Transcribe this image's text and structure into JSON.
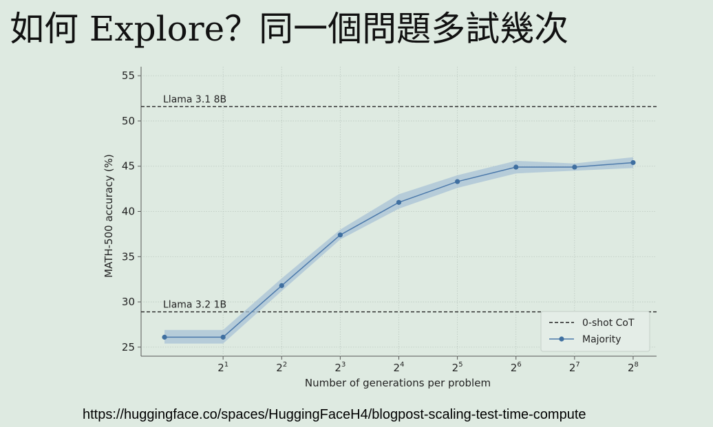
{
  "slide": {
    "title": "如何 Explore？同一個問題多試幾次",
    "source_url": "https://huggingface.co/spaces/HuggingFaceH4/blogpost-scaling-test-time-compute"
  },
  "chart_data": {
    "type": "line",
    "title": "",
    "xlabel": "Number of generations per problem",
    "ylabel": "MATH-500 accuracy (%)",
    "ylim": [
      24,
      56
    ],
    "y_ticks": [
      25,
      30,
      35,
      40,
      45,
      50,
      55
    ],
    "x_ticks": [
      {
        "x": 1,
        "base": "2",
        "exp": "1"
      },
      {
        "x": 2,
        "base": "2",
        "exp": "2"
      },
      {
        "x": 3,
        "base": "2",
        "exp": "3"
      },
      {
        "x": 4,
        "base": "2",
        "exp": "4"
      },
      {
        "x": 5,
        "base": "2",
        "exp": "5"
      },
      {
        "x": 6,
        "base": "2",
        "exp": "6"
      },
      {
        "x": 7,
        "base": "2",
        "exp": "7"
      },
      {
        "x": 8,
        "base": "2",
        "exp": "8"
      }
    ],
    "xlim": [
      -0.4,
      8.4
    ],
    "grid": true,
    "legend_position": "bottom-right",
    "series": [
      {
        "name": "Majority",
        "color": "#4a78aa",
        "band_color": "#a8c1d6",
        "x": [
          0,
          1,
          2,
          3,
          4,
          5,
          6,
          7,
          8
        ],
        "values": [
          26.1,
          26.1,
          31.8,
          37.4,
          41.0,
          43.3,
          44.9,
          44.9,
          45.4
        ],
        "lower": [
          25.4,
          25.4,
          31.2,
          36.9,
          40.3,
          42.6,
          44.2,
          44.5,
          44.8
        ],
        "upper": [
          26.9,
          26.9,
          32.6,
          38.0,
          41.9,
          44.0,
          45.6,
          45.3,
          46.0
        ]
      }
    ],
    "reference_lines": [
      {
        "name": "Llama 3.1 8B",
        "value": 51.6
      },
      {
        "name": "Llama 3.2 1B",
        "value": 28.9
      }
    ],
    "legend": {
      "dashed_label": "0-shot CoT",
      "series_label": "Majority"
    }
  }
}
